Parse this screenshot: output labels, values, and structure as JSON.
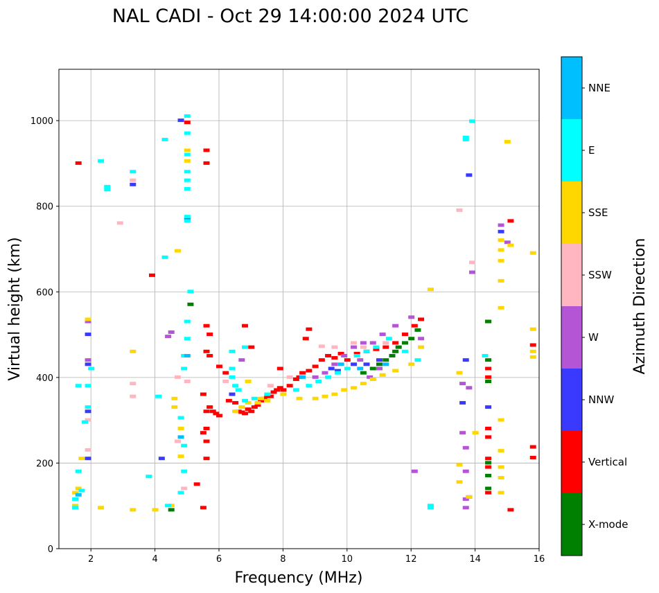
{
  "chart_data": {
    "type": "scatter",
    "title": "NAL CADI - Oct 29 14:00:00 2024 UTC",
    "xlabel": "Frequency (MHz)",
    "ylabel": "Virtual height (km)",
    "xlim": [
      1,
      16
    ],
    "ylim": [
      0,
      1120
    ],
    "xticks": [
      2,
      4,
      6,
      8,
      10,
      12,
      14,
      16
    ],
    "yticks": [
      0,
      200,
      400,
      600,
      800,
      1000
    ],
    "xtick_labels": [
      "2",
      "4",
      "6",
      "8",
      "10",
      "12",
      "14",
      "16"
    ],
    "ytick_labels": [
      "0",
      "200",
      "400",
      "600",
      "800",
      "1000"
    ],
    "grid": true,
    "colorbar": {
      "label": "Azimuth Direction",
      "categories": [
        {
          "name": "X-mode",
          "color": "#008000"
        },
        {
          "name": "Vertical",
          "color": "#ff0000"
        },
        {
          "name": "NNW",
          "color": "#3a3aff"
        },
        {
          "name": "W",
          "color": "#b455d6"
        },
        {
          "name": "SSW",
          "color": "#ffb6c1"
        },
        {
          "name": "SSE",
          "color": "#ffd700"
        },
        {
          "name": "E",
          "color": "#00ffff"
        },
        {
          "name": "NNE",
          "color": "#00bfff"
        }
      ]
    },
    "series": [
      {
        "name": "Vertical",
        "color": "#ff0000",
        "points": [
          [
            5.6,
            320
          ],
          [
            5.7,
            330
          ],
          [
            5.8,
            320
          ],
          [
            5.9,
            315
          ],
          [
            6.0,
            310
          ],
          [
            6.3,
            345
          ],
          [
            6.5,
            340
          ],
          [
            6.6,
            320
          ],
          [
            6.7,
            318
          ],
          [
            6.8,
            315
          ],
          [
            6.9,
            325
          ],
          [
            7.0,
            320
          ],
          [
            7.1,
            330
          ],
          [
            7.2,
            335
          ],
          [
            7.3,
            345
          ],
          [
            7.4,
            350
          ],
          [
            7.5,
            355
          ],
          [
            7.6,
            355
          ],
          [
            7.7,
            365
          ],
          [
            7.8,
            370
          ],
          [
            7.9,
            375
          ],
          [
            8.0,
            370
          ],
          [
            8.2,
            380
          ],
          [
            8.4,
            395
          ],
          [
            8.5,
            400
          ],
          [
            8.6,
            410
          ],
          [
            8.8,
            415
          ],
          [
            9.0,
            425
          ],
          [
            9.2,
            440
          ],
          [
            9.4,
            450
          ],
          [
            9.6,
            445
          ],
          [
            9.8,
            455
          ],
          [
            10.0,
            440
          ],
          [
            10.3,
            455
          ],
          [
            10.6,
            460
          ],
          [
            10.9,
            465
          ],
          [
            11.2,
            470
          ],
          [
            11.5,
            480
          ],
          [
            11.8,
            500
          ],
          [
            12.1,
            520
          ],
          [
            12.3,
            535
          ],
          [
            5.6,
            250
          ],
          [
            5.6,
            280
          ],
          [
            5.6,
            210
          ],
          [
            5.5,
            270
          ],
          [
            5.5,
            360
          ],
          [
            5.6,
            460
          ],
          [
            5.7,
            500
          ],
          [
            5.6,
            520
          ],
          [
            5.6,
            900
          ],
          [
            5.6,
            930
          ],
          [
            5.0,
            995
          ],
          [
            5.3,
            150
          ],
          [
            5.5,
            95
          ],
          [
            5.7,
            450
          ],
          [
            8.8,
            512
          ],
          [
            8.7,
            490
          ],
          [
            7.0,
            470
          ],
          [
            7.9,
            420
          ],
          [
            6.0,
            425
          ],
          [
            6.2,
            410
          ],
          [
            6.8,
            520
          ],
          [
            1.6,
            900
          ],
          [
            3.9,
            638
          ],
          [
            14.4,
            530
          ],
          [
            14.4,
            400
          ],
          [
            14.4,
            420
          ],
          [
            14.4,
            280
          ],
          [
            14.4,
            260
          ],
          [
            14.4,
            210
          ],
          [
            14.4,
            190
          ],
          [
            14.4,
            130
          ],
          [
            15.1,
            765
          ],
          [
            15.1,
            90
          ],
          [
            15.8,
            475
          ],
          [
            15.8,
            237
          ],
          [
            15.8,
            212
          ]
        ]
      },
      {
        "name": "X-mode",
        "color": "#008000",
        "points": [
          [
            10.5,
            410
          ],
          [
            10.8,
            420
          ],
          [
            11.0,
            430
          ],
          [
            11.2,
            440
          ],
          [
            11.4,
            450
          ],
          [
            11.6,
            470
          ],
          [
            11.8,
            480
          ],
          [
            12.0,
            490
          ],
          [
            12.2,
            510
          ],
          [
            11.5,
            460
          ],
          [
            14.4,
            530
          ],
          [
            14.4,
            440
          ],
          [
            14.4,
            390
          ],
          [
            14.4,
            200
          ],
          [
            14.4,
            170
          ],
          [
            14.4,
            140
          ],
          [
            5.1,
            570
          ],
          [
            4.5,
            90
          ]
        ]
      },
      {
        "name": "NNW",
        "color": "#3a3aff",
        "points": [
          [
            1.9,
            210
          ],
          [
            1.9,
            320
          ],
          [
            1.9,
            430
          ],
          [
            1.9,
            500
          ],
          [
            4.2,
            210
          ],
          [
            3.3,
            850
          ],
          [
            4.8,
            1000
          ],
          [
            9.5,
            420
          ],
          [
            9.7,
            415
          ],
          [
            10.2,
            430
          ],
          [
            10.6,
            430
          ],
          [
            11.0,
            440
          ],
          [
            13.6,
            340
          ],
          [
            13.7,
            440
          ],
          [
            13.8,
            120
          ],
          [
            13.8,
            872
          ],
          [
            14.8,
            740
          ],
          [
            14.4,
            330
          ],
          [
            6.4,
            360
          ],
          [
            5.0,
            770
          ]
        ]
      },
      {
        "name": "W",
        "color": "#b455d6",
        "points": [
          [
            9.0,
            400
          ],
          [
            9.3,
            410
          ],
          [
            9.6,
            430
          ],
          [
            9.9,
            450
          ],
          [
            10.2,
            470
          ],
          [
            10.5,
            480
          ],
          [
            10.8,
            480
          ],
          [
            11.1,
            500
          ],
          [
            11.5,
            520
          ],
          [
            12.0,
            540
          ],
          [
            12.3,
            490
          ],
          [
            11.0,
            420
          ],
          [
            10.7,
            400
          ],
          [
            10.4,
            440
          ],
          [
            12.1,
            180
          ],
          [
            13.6,
            270
          ],
          [
            13.7,
            235
          ],
          [
            13.7,
            180
          ],
          [
            13.7,
            95
          ],
          [
            13.7,
            115
          ],
          [
            13.6,
            385
          ],
          [
            13.8,
            375
          ],
          [
            13.9,
            645
          ],
          [
            14.8,
            755
          ],
          [
            15.0,
            715
          ],
          [
            4.4,
            495
          ],
          [
            4.5,
            505
          ],
          [
            1.9,
            440
          ],
          [
            1.9,
            530
          ],
          [
            6.7,
            440
          ]
        ]
      },
      {
        "name": "SSW",
        "color": "#ffb6c1",
        "points": [
          [
            1.9,
            230
          ],
          [
            1.9,
            300
          ],
          [
            3.3,
            860
          ],
          [
            3.3,
            355
          ],
          [
            3.3,
            385
          ],
          [
            4.7,
            400
          ],
          [
            4.7,
            250
          ],
          [
            5.0,
            390
          ],
          [
            4.9,
            140
          ],
          [
            6.2,
            390
          ],
          [
            7.6,
            380
          ],
          [
            8.2,
            400
          ],
          [
            9.6,
            470
          ],
          [
            10.2,
            480
          ],
          [
            10.5,
            470
          ],
          [
            11.2,
            480
          ],
          [
            13.5,
            790
          ],
          [
            13.9,
            668
          ],
          [
            2.9,
            760
          ],
          [
            9.2,
            472
          ]
        ]
      },
      {
        "name": "SSE",
        "color": "#ffd700",
        "points": [
          [
            6.5,
            320
          ],
          [
            6.7,
            330
          ],
          [
            6.9,
            340
          ],
          [
            7.2,
            340
          ],
          [
            7.5,
            345
          ],
          [
            8.0,
            360
          ],
          [
            8.5,
            350
          ],
          [
            9.0,
            350
          ],
          [
            9.3,
            355
          ],
          [
            9.6,
            360
          ],
          [
            9.9,
            370
          ],
          [
            10.2,
            375
          ],
          [
            10.5,
            385
          ],
          [
            10.8,
            395
          ],
          [
            11.1,
            405
          ],
          [
            11.5,
            415
          ],
          [
            12.0,
            430
          ],
          [
            12.3,
            470
          ],
          [
            12.6,
            605
          ],
          [
            6.9,
            390
          ],
          [
            7.3,
            350
          ],
          [
            4.6,
            350
          ],
          [
            4.6,
            330
          ],
          [
            4.8,
            280
          ],
          [
            4.8,
            215
          ],
          [
            4.5,
            100
          ],
          [
            4.0,
            90
          ],
          [
            2.3,
            95
          ],
          [
            1.5,
            130
          ],
          [
            1.5,
            100
          ],
          [
            1.6,
            140
          ],
          [
            1.7,
            210
          ],
          [
            1.9,
            535
          ],
          [
            3.3,
            90
          ],
          [
            3.3,
            460
          ],
          [
            4.7,
            695
          ],
          [
            5.0,
            930
          ],
          [
            5.0,
            905
          ],
          [
            13.5,
            410
          ],
          [
            13.5,
            195
          ],
          [
            13.5,
            155
          ],
          [
            13.8,
            120
          ],
          [
            14.0,
            270
          ],
          [
            14.8,
            720
          ],
          [
            14.8,
            697
          ],
          [
            14.8,
            672
          ],
          [
            14.8,
            625
          ],
          [
            14.8,
            562
          ],
          [
            14.8,
            300
          ],
          [
            14.8,
            228
          ],
          [
            14.8,
            190
          ],
          [
            14.8,
            165
          ],
          [
            14.8,
            130
          ],
          [
            15.0,
            950
          ],
          [
            15.1,
            708
          ],
          [
            15.8,
            690
          ],
          [
            15.8,
            512
          ],
          [
            15.8,
            460
          ],
          [
            15.8,
            447
          ]
        ]
      },
      {
        "name": "E",
        "color": "#00ffff",
        "points": [
          [
            6.4,
            420
          ],
          [
            6.4,
            400
          ],
          [
            6.5,
            380
          ],
          [
            6.6,
            370
          ],
          [
            6.8,
            345
          ],
          [
            7.1,
            350
          ],
          [
            7.5,
            360
          ],
          [
            8.4,
            370
          ],
          [
            8.8,
            380
          ],
          [
            9.1,
            390
          ],
          [
            9.4,
            400
          ],
          [
            9.7,
            410
          ],
          [
            10.0,
            420
          ],
          [
            10.3,
            450
          ],
          [
            10.6,
            460
          ],
          [
            10.9,
            470
          ],
          [
            11.3,
            490
          ],
          [
            11.8,
            460
          ],
          [
            12.2,
            440
          ],
          [
            6.4,
            460
          ],
          [
            6.8,
            470
          ],
          [
            5.0,
            1010
          ],
          [
            5.0,
            970
          ],
          [
            5.0,
            920
          ],
          [
            5.0,
            880
          ],
          [
            5.0,
            860
          ],
          [
            5.0,
            840
          ],
          [
            5.0,
            775
          ],
          [
            5.0,
            765
          ],
          [
            5.1,
            600
          ],
          [
            5.0,
            530
          ],
          [
            5.0,
            490
          ],
          [
            4.9,
            450
          ],
          [
            4.9,
            420
          ],
          [
            4.8,
            305
          ],
          [
            4.9,
            240
          ],
          [
            4.9,
            180
          ],
          [
            4.8,
            130
          ],
          [
            4.4,
            100
          ],
          [
            4.3,
            680
          ],
          [
            4.3,
            955
          ],
          [
            3.3,
            880
          ],
          [
            3.8,
            168
          ],
          [
            4.1,
            355
          ],
          [
            2.3,
            905
          ],
          [
            2.5,
            845
          ],
          [
            2.5,
            838
          ],
          [
            2.0,
            420
          ],
          [
            1.9,
            380
          ],
          [
            1.9,
            330
          ],
          [
            1.8,
            295
          ],
          [
            1.6,
            380
          ],
          [
            1.6,
            180
          ],
          [
            1.5,
            115
          ],
          [
            1.5,
            95
          ],
          [
            1.7,
            135
          ],
          [
            12.6,
            95
          ],
          [
            12.6,
            100
          ],
          [
            13.7,
            960
          ],
          [
            13.7,
            955
          ],
          [
            13.9,
            998
          ],
          [
            14.3,
            450
          ]
        ]
      },
      {
        "name": "NNE",
        "color": "#00bfff",
        "points": [
          [
            8.6,
            400
          ],
          [
            9.8,
            430
          ],
          [
            10.4,
            420
          ],
          [
            11.2,
            430
          ],
          [
            4.8,
            260
          ],
          [
            5.0,
            450
          ],
          [
            1.6,
            125
          ]
        ]
      }
    ]
  }
}
